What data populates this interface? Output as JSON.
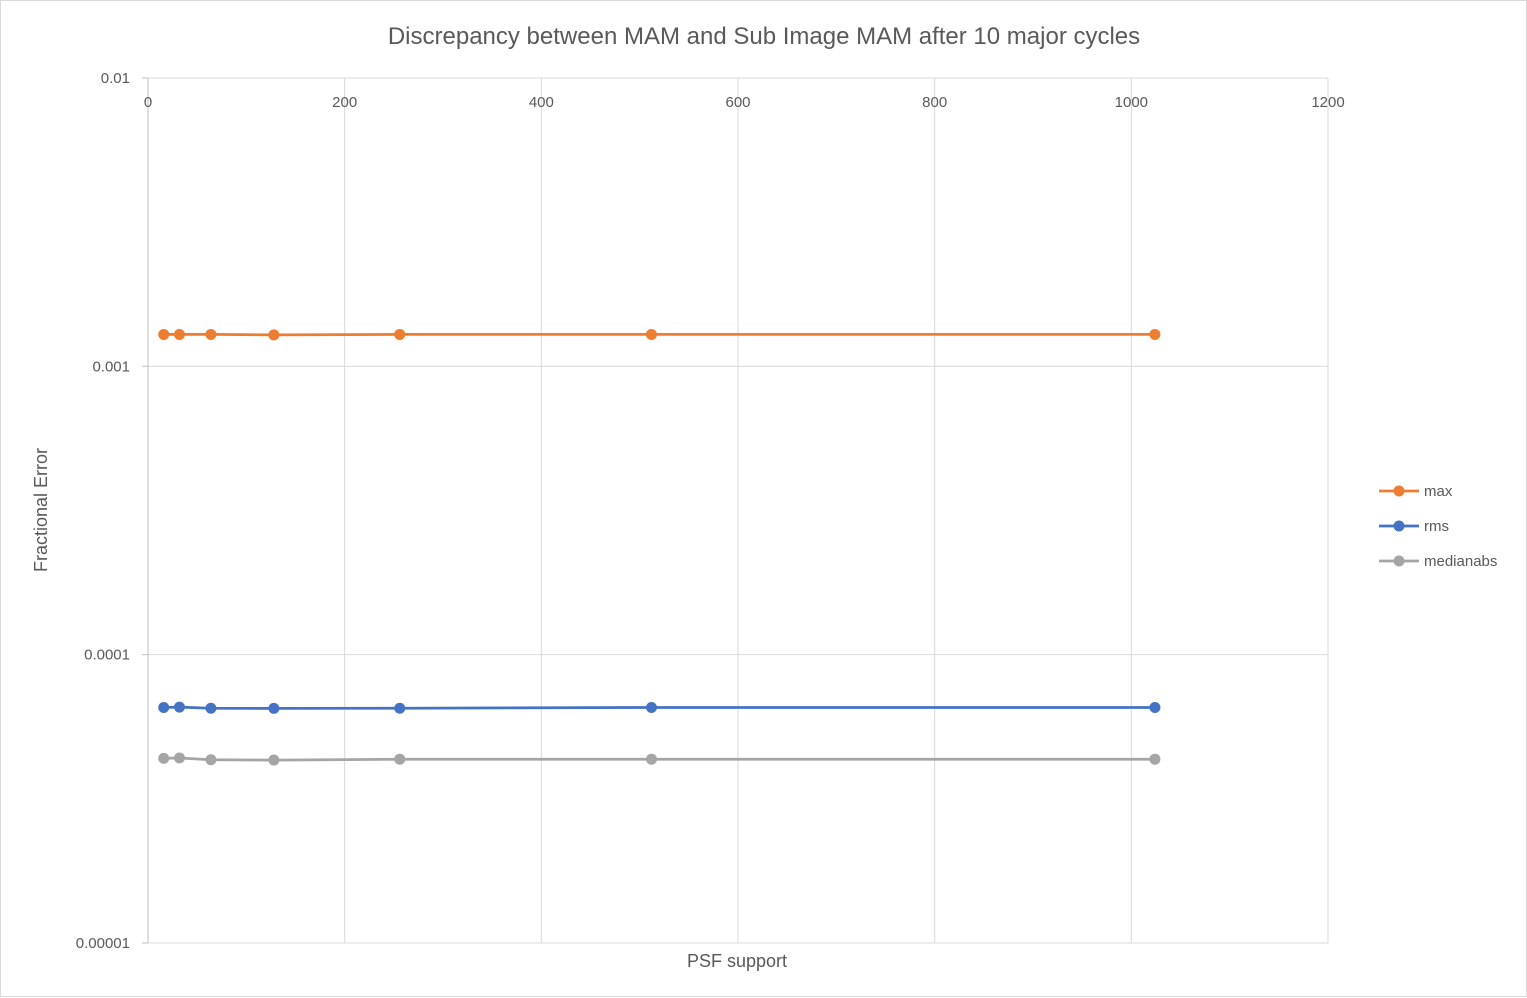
{
  "chart_data": {
    "type": "scatter",
    "title": "Discrepancy between MAM and Sub Image MAM after 10 major cycles",
    "xlabel": "PSF support",
    "ylabel": "Fractional Error",
    "xlim": [
      0,
      1200
    ],
    "ylim": [
      1e-05,
      0.01
    ],
    "yscale": "log",
    "x_ticks": [
      "0",
      "200",
      "400",
      "600",
      "800",
      "1000",
      "1200"
    ],
    "y_ticks": [
      "0.01",
      "0.001",
      "0.0001",
      "0.00001"
    ],
    "grid": true,
    "legend_position": "right",
    "x": [
      16,
      32,
      64,
      128,
      256,
      512,
      1024
    ],
    "series": [
      {
        "name": "max",
        "color": "#ED7D31",
        "values": [
          0.00129,
          0.00129,
          0.00129,
          0.001285,
          0.00129,
          0.00129,
          0.00129
        ]
      },
      {
        "name": "rms",
        "color": "#4472C4",
        "values": [
          6.56e-05,
          6.58e-05,
          6.52e-05,
          6.51e-05,
          6.52e-05,
          6.56e-05,
          6.56e-05
        ]
      },
      {
        "name": "medianabs",
        "color": "#A5A5A5",
        "values": [
          4.37e-05,
          4.38e-05,
          4.32e-05,
          4.31e-05,
          4.34e-05,
          4.34e-05,
          4.34e-05
        ]
      }
    ]
  }
}
